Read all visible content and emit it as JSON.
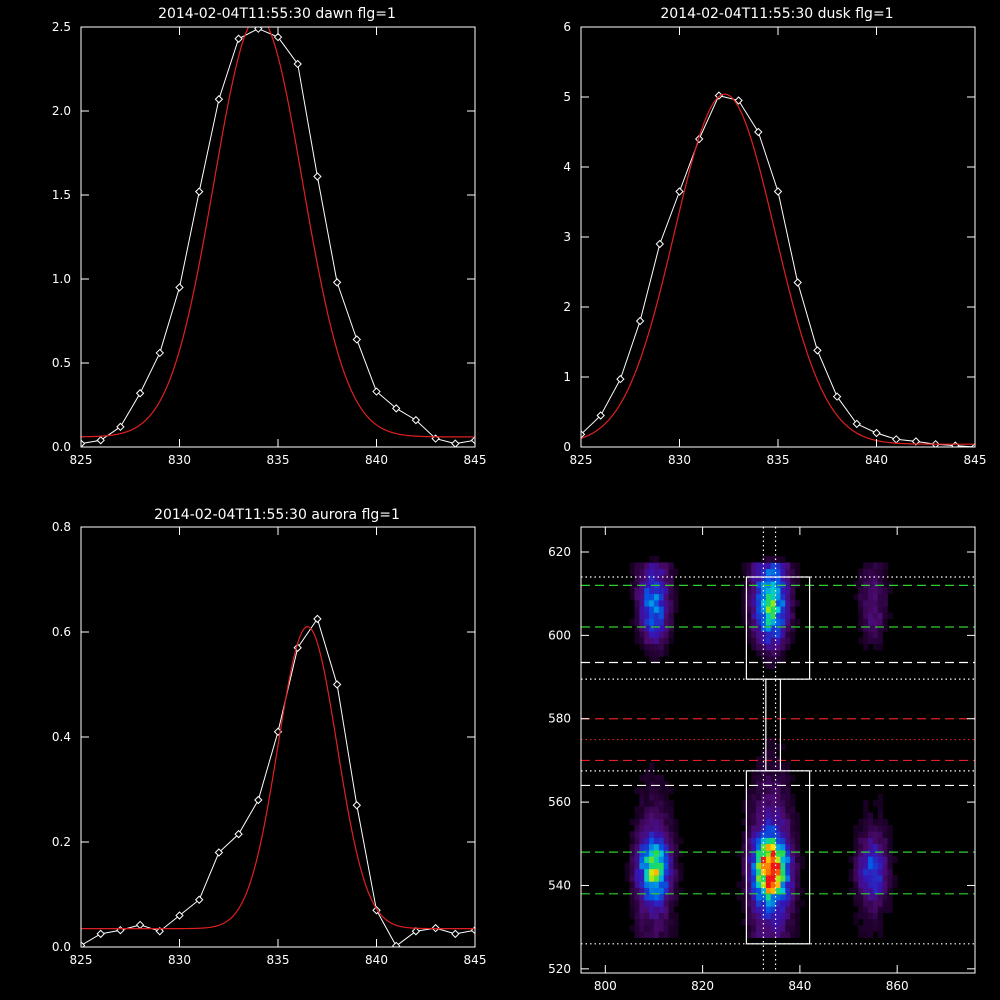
{
  "chart_data": [
    {
      "type": "line",
      "title": "2014-02-04T11:55:30 dawn flg=1",
      "xlabel": "",
      "ylabel": "",
      "xlim": [
        825,
        845
      ],
      "ylim": [
        0,
        2.5
      ],
      "x_ticks": [
        825,
        830,
        835,
        840,
        845
      ],
      "y_ticks": [
        0.0,
        0.5,
        1.0,
        1.5,
        2.0,
        2.5
      ],
      "x_tick_labels": [
        "825",
        "830",
        "835",
        "840",
        "845"
      ],
      "y_tick_labels": [
        "0.0",
        "0.5",
        "1.0",
        "1.5",
        "2.0",
        "2.5"
      ],
      "series": [
        {
          "style": "data-diamonds",
          "color": "#ffffff",
          "x": [
            825,
            826,
            827,
            828,
            829,
            830,
            831,
            832,
            833,
            834,
            835,
            836,
            837,
            838,
            839,
            840,
            841,
            842,
            843,
            844,
            845
          ],
          "y": [
            0.02,
            0.04,
            0.12,
            0.32,
            0.56,
            0.95,
            1.52,
            2.07,
            2.43,
            2.49,
            2.44,
            2.28,
            1.61,
            0.98,
            0.64,
            0.33,
            0.23,
            0.16,
            0.05,
            0.02,
            0.04
          ]
        },
        {
          "style": "gaussian-fit",
          "color": "#e02020",
          "amplitude": 2.5,
          "center": 834.0,
          "sigma": 2.25,
          "offset": 0.06
        }
      ]
    },
    {
      "type": "line",
      "title": "2014-02-04T11:55:30 dusk flg=1",
      "xlabel": "",
      "ylabel": "",
      "xlim": [
        825,
        845
      ],
      "ylim": [
        0,
        6
      ],
      "x_ticks": [
        825,
        830,
        835,
        840,
        845
      ],
      "y_ticks": [
        0,
        1,
        2,
        3,
        4,
        5,
        6
      ],
      "x_tick_labels": [
        "825",
        "830",
        "835",
        "840",
        "845"
      ],
      "y_tick_labels": [
        "0",
        "1",
        "2",
        "3",
        "4",
        "5",
        "6"
      ],
      "series": [
        {
          "style": "data-diamonds",
          "color": "#ffffff",
          "x": [
            825,
            826,
            827,
            828,
            829,
            830,
            831,
            832,
            833,
            834,
            835,
            836,
            837,
            838,
            839,
            840,
            841,
            842,
            843,
            844,
            845
          ],
          "y": [
            0.18,
            0.45,
            0.97,
            1.8,
            2.9,
            3.65,
            4.4,
            5.02,
            4.95,
            4.5,
            3.65,
            2.35,
            1.38,
            0.72,
            0.33,
            0.2,
            0.11,
            0.08,
            0.04,
            0.02,
            0.0
          ]
        },
        {
          "style": "gaussian-fit",
          "color": "#e02020",
          "amplitude": 5.0,
          "center": 832.3,
          "sigma": 2.55,
          "offset": 0.04
        }
      ]
    },
    {
      "type": "line",
      "title": "2014-02-04T11:55:30 aurora flg=1",
      "xlabel": "",
      "ylabel": "",
      "xlim": [
        825,
        845
      ],
      "ylim": [
        0,
        0.8
      ],
      "x_ticks": [
        825,
        830,
        835,
        840,
        845
      ],
      "y_ticks": [
        0.0,
        0.2,
        0.4,
        0.6,
        0.8
      ],
      "x_tick_labels": [
        "825",
        "830",
        "835",
        "840",
        "845"
      ],
      "y_tick_labels": [
        "0.0",
        "0.2",
        "0.4",
        "0.6",
        "0.8"
      ],
      "series": [
        {
          "style": "data-diamonds",
          "color": "#ffffff",
          "x": [
            825,
            826,
            827,
            828,
            829,
            830,
            831,
            832,
            833,
            834,
            835,
            836,
            837,
            838,
            839,
            840,
            841,
            842,
            843,
            844,
            845
          ],
          "y": [
            0.003,
            0.025,
            0.032,
            0.042,
            0.03,
            0.06,
            0.09,
            0.18,
            0.215,
            0.28,
            0.41,
            0.57,
            0.625,
            0.5,
            0.27,
            0.07,
            0.002,
            0.03,
            0.036,
            0.025,
            0.032
          ]
        },
        {
          "style": "gaussian-fit",
          "color": "#e02020",
          "amplitude": 0.575,
          "center": 836.5,
          "sigma": 1.5,
          "offset": 0.035
        }
      ]
    },
    {
      "type": "heatmap",
      "title": "",
      "xlabel": "",
      "ylabel": "",
      "xlim": [
        795,
        876
      ],
      "ylim": [
        519,
        626
      ],
      "x_ticks": [
        800,
        820,
        840,
        860
      ],
      "y_ticks": [
        520,
        540,
        560,
        580,
        600,
        620
      ],
      "x_tick_labels": [
        "800",
        "820",
        "840",
        "860"
      ],
      "y_tick_labels": [
        "520",
        "540",
        "560",
        "580",
        "600",
        "620"
      ],
      "colormap": "rainbow-on-black",
      "emission_columns": [
        {
          "x": 810,
          "spots": [
            {
              "y": 544,
              "intensity": 0.62,
              "sx": 2.0,
              "sy": 5
            },
            {
              "y": 607,
              "intensity": 0.38,
              "sx": 2.0,
              "sy": 6
            }
          ],
          "band_intensity": 0.14
        },
        {
          "x": 834,
          "spots": [
            {
              "y": 544,
              "intensity": 1.0,
              "sx": 2.2,
              "sy": 5
            },
            {
              "y": 607,
              "intensity": 0.55,
              "sx": 2.2,
              "sy": 6
            }
          ],
          "band_intensity": 0.22
        },
        {
          "x": 855,
          "spots": [
            {
              "y": 544,
              "intensity": 0.3,
              "sx": 2.0,
              "sy": 5
            },
            {
              "y": 606,
              "intensity": 0.14,
              "sx": 2.0,
              "sy": 6
            }
          ],
          "band_intensity": 0.08
        }
      ],
      "overlay_lines": [
        {
          "orientation": "horizontal",
          "value": 612,
          "style": "dashed",
          "color": "#30d030"
        },
        {
          "orientation": "horizontal",
          "value": 602,
          "style": "dashed",
          "color": "#30d030"
        },
        {
          "orientation": "horizontal",
          "value": 548,
          "style": "dashed",
          "color": "#30d030"
        },
        {
          "orientation": "horizontal",
          "value": 538,
          "style": "dashed",
          "color": "#30d030"
        },
        {
          "orientation": "horizontal",
          "value": 593.5,
          "style": "dashed",
          "color": "#ffffff"
        },
        {
          "orientation": "horizontal",
          "value": 564,
          "style": "dashed",
          "color": "#ffffff"
        },
        {
          "orientation": "horizontal",
          "value": 580,
          "style": "dashed",
          "color": "#e02020"
        },
        {
          "orientation": "horizontal",
          "value": 570,
          "style": "dashed",
          "color": "#e02020"
        },
        {
          "orientation": "horizontal",
          "value": 614,
          "style": "dotted",
          "color": "#ffffff"
        },
        {
          "orientation": "horizontal",
          "value": 589.5,
          "style": "dotted",
          "color": "#ffffff"
        },
        {
          "orientation": "horizontal",
          "value": 575,
          "style": "dotted",
          "color": "#e02020"
        },
        {
          "orientation": "horizontal",
          "value": 567.5,
          "style": "dotted",
          "color": "#ffffff"
        },
        {
          "orientation": "horizontal",
          "value": 526,
          "style": "dotted",
          "color": "#ffffff"
        },
        {
          "orientation": "vertical",
          "value": 832.5,
          "style": "dotted",
          "color": "#ffffff"
        },
        {
          "orientation": "vertical",
          "value": 835,
          "style": "dotted",
          "color": "#ffffff"
        }
      ],
      "boxes": [
        {
          "x0": 829,
          "x1": 842,
          "y0": 589.5,
          "y1": 614,
          "color": "#ffffff"
        },
        {
          "x0": 829,
          "x1": 842,
          "y0": 526,
          "y1": 567.5,
          "color": "#ffffff"
        },
        {
          "x0": 833,
          "x1": 836,
          "y0": 567.5,
          "y1": 589.5,
          "color": "#ffffff"
        }
      ]
    }
  ]
}
